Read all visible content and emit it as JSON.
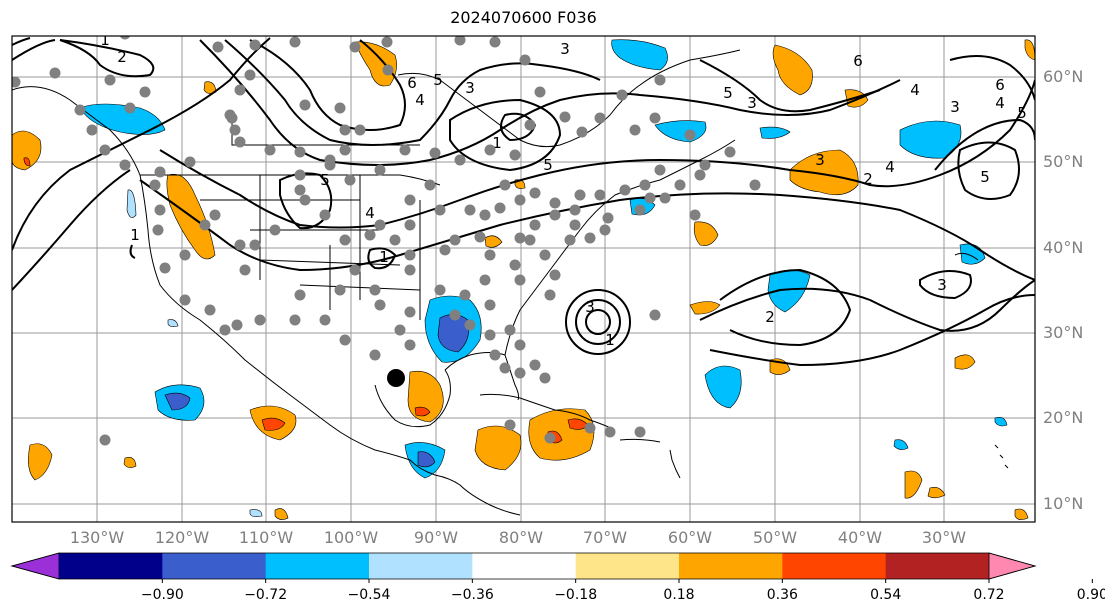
{
  "title": "2024070600 F036",
  "map": {
    "projection": "Equidistant cylindrical",
    "lat_labels": [
      "60°N",
      "50°N",
      "40°N",
      "30°N",
      "20°N",
      "10°N"
    ],
    "lon_labels": [
      "130°W",
      "120°W",
      "110°W",
      "100°W",
      "90°W",
      "80°W",
      "70°W",
      "60°W",
      "50°W",
      "40°W",
      "30°W"
    ],
    "contour_labels": [
      "1",
      "2",
      "3",
      "4",
      "5",
      "6"
    ],
    "highlight_marker": "black-dot"
  },
  "colorbar": {
    "labels": [
      "−0.90",
      "−0.72",
      "−0.54",
      "−0.36",
      "−0.18",
      "0.18",
      "0.36",
      "0.54",
      "0.72",
      "0.90"
    ],
    "colors": [
      "#9b30d9",
      "#00008b",
      "#3a5fcd",
      "#00bfff",
      "#b0e2ff",
      "#ffffff",
      "#ffe58a",
      "#ffa500",
      "#ff4500",
      "#b22222",
      "#ff88b0"
    ],
    "extend": "both"
  }
}
